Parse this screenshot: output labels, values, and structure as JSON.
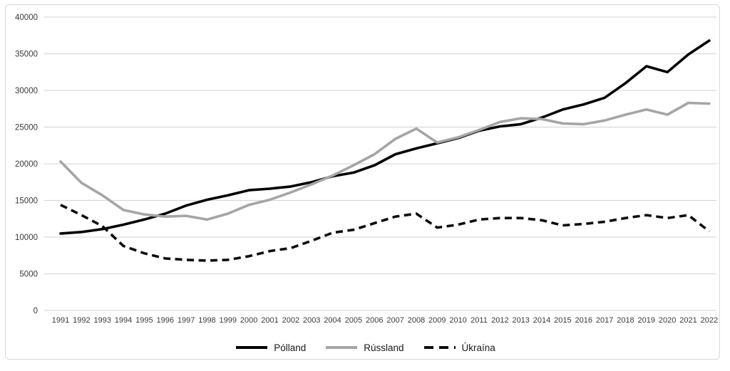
{
  "chart_data": {
    "type": "line",
    "title": "",
    "xlabel": "",
    "ylabel": "",
    "x": [
      1991,
      1992,
      1993,
      1994,
      1995,
      1996,
      1997,
      1998,
      1999,
      2000,
      2001,
      2002,
      2003,
      2004,
      2005,
      2006,
      2007,
      2008,
      2009,
      2010,
      2011,
      2012,
      2013,
      2014,
      2015,
      2016,
      2017,
      2018,
      2019,
      2020,
      2021,
      2022
    ],
    "series": [
      {
        "name": "Pólland",
        "color": "#000000",
        "line_style": "solid",
        "values": [
          10500,
          10700,
          11100,
          11700,
          12400,
          13200,
          14300,
          15100,
          15700,
          16400,
          16600,
          16900,
          17500,
          18300,
          18800,
          19800,
          21300,
          22100,
          22800,
          23500,
          24500,
          25100,
          25400,
          26300,
          27400,
          28100,
          29000,
          31000,
          33300,
          32500,
          34900,
          36800
        ]
      },
      {
        "name": "Rússland",
        "color": "#a5a5a5",
        "line_style": "solid",
        "values": [
          20300,
          17400,
          15700,
          13700,
          13100,
          12800,
          12900,
          12400,
          13200,
          14400,
          15100,
          16100,
          17200,
          18400,
          19800,
          21300,
          23400,
          24800,
          22900,
          23600,
          24600,
          25700,
          26200,
          26100,
          25500,
          25400,
          25900,
          26700,
          27400,
          26700,
          28300,
          28200
        ]
      },
      {
        "name": "Úkraína",
        "color": "#0d0d0d",
        "line_style": "dashed",
        "values": [
          14400,
          13000,
          11500,
          8800,
          7800,
          7100,
          6900,
          6800,
          6900,
          7400,
          8100,
          8500,
          9500,
          10600,
          11000,
          11900,
          12800,
          13200,
          11300,
          11700,
          12400,
          12600,
          12600,
          12300,
          11600,
          11800,
          12100,
          12600,
          13000,
          12600,
          13000,
          10800
        ]
      }
    ],
    "ylim": [
      0,
      40000
    ],
    "ytick_step": 5000,
    "yticks": [
      0,
      5000,
      10000,
      15000,
      20000,
      25000,
      30000,
      35000,
      40000
    ],
    "grid": "horizontal",
    "legend_position": "bottom-center",
    "gridline_color": "#d9d9d9",
    "frame_border_color": "#d9d9d9",
    "axis_text_color": "#3a3a3a"
  }
}
